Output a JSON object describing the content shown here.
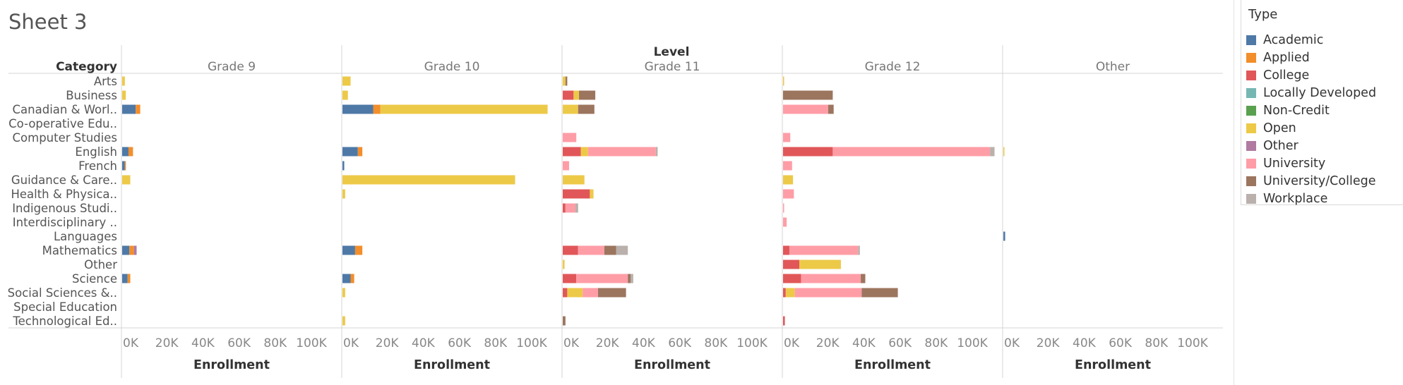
{
  "sheet_title": "Sheet 3",
  "legend": {
    "title": "Type",
    "items": [
      {
        "name": "Academic",
        "color": "#4e79a7"
      },
      {
        "name": "Applied",
        "color": "#f28e2b"
      },
      {
        "name": "College",
        "color": "#e15759"
      },
      {
        "name": "Locally Developed",
        "color": "#76b7b2"
      },
      {
        "name": "Non-Credit",
        "color": "#59a14f"
      },
      {
        "name": "Open",
        "color": "#edc948"
      },
      {
        "name": "Other",
        "color": "#b07aa1"
      },
      {
        "name": "University",
        "color": "#ff9da7"
      },
      {
        "name": "University/College",
        "color": "#9c755f"
      },
      {
        "name": "Workplace",
        "color": "#bab0ac"
      }
    ]
  },
  "chart_data": {
    "type": "bar",
    "orientation": "horizontal",
    "stacked": true,
    "column_header_title": "Level",
    "row_header_title": "Category",
    "xlabel": "Enrollment",
    "xlim": [
      0,
      115000
    ],
    "xticks": [
      "0K",
      "20K",
      "40K",
      "60K",
      "80K",
      "100K"
    ],
    "tick_values": [
      0,
      20000,
      40000,
      60000,
      80000,
      100000
    ],
    "levels": [
      "Grade 9",
      "Grade 10",
      "Grade 11",
      "Grade 12",
      "Other"
    ],
    "categories": [
      "Arts",
      "Business",
      "Canadian & Worl..",
      "Co-operative Edu..",
      "Computer Studies",
      "English",
      "French",
      "Guidance & Care..",
      "Health & Physica..",
      "Indigenous Studi..",
      "Interdisciplinary ..",
      "Languages",
      "Mathematics",
      "Other",
      "Science",
      "Social Sciences &..",
      "Special Education",
      "Technological Ed.."
    ],
    "data": {
      "Grade 9": {
        "Arts": {
          "Open": 1500
        },
        "Business": {
          "Open": 2000
        },
        "Canadian & Worl..": {
          "Applied": 2500,
          "Academic": 7500
        },
        "English": {
          "Applied": 2500,
          "Academic": 3500
        },
        "French": {
          "Applied": 500,
          "Academic": 1500
        },
        "Guidance & Care..": {
          "Open": 4500
        },
        "Mathematics": {
          "Other": 1500,
          "Applied": 2500,
          "Academic": 4000
        },
        "Science": {
          "Applied": 1500,
          "Academic": 3000
        }
      },
      "Grade 10": {
        "Arts": {
          "Open": 4500
        },
        "Business": {
          "Open": 3000
        },
        "Canadian & Worl..": {
          "Open": 92500,
          "Applied": 4000,
          "Academic": 17000
        },
        "English": {
          "Applied": 2500,
          "Academic": 8500
        },
        "French": {
          "Academic": 1000
        },
        "Guidance & Care..": {
          "Open": 95500
        },
        "Health & Physica..": {
          "Open": 1500
        },
        "Mathematics": {
          "Applied": 4000,
          "Academic": 7000
        },
        "Science": {
          "Applied": 2000,
          "Academic": 4500
        },
        "Social Sciences &..": {
          "Open": 1500
        },
        "Technological Ed..": {
          "Open": 1500
        }
      },
      "Grade 11": {
        "Arts": {
          "University/College": 1000,
          "Open": 1500
        },
        "Business": {
          "University/College": 9000,
          "Open": 3000,
          "College": 6000
        },
        "Canadian & Worl..": {
          "University/College": 9000,
          "Open": 8500
        },
        "Computer Studies": {
          "University": 7500
        },
        "English": {
          "Workplace": 1000,
          "University": 37500,
          "Open": 4000,
          "College": 10000
        },
        "French": {
          "University": 3500
        },
        "Guidance & Care..": {
          "Open": 12000
        },
        "Health & Physica..": {
          "Open": 2000,
          "College": 15000
        },
        "Indigenous Studi..": {
          "Workplace": 1500,
          "University": 5500,
          "College": 1500
        },
        "Mathematics": {
          "Workplace": 6500,
          "University/College": 6500,
          "University": 14500,
          "College": 8500
        },
        "Other": {
          "Open": 1000
        },
        "Science": {
          "Workplace": 1500,
          "University/College": 1500,
          "University": 28500,
          "College": 7500
        },
        "Social Sciences &..": {
          "University/College": 15500,
          "University": 8500,
          "Open": 8500,
          "College": 2500
        },
        "Technological Ed..": {
          "University/College": 1500
        }
      },
      "Grade 12": {
        "Arts": {
          "Open": 500
        },
        "Business": {
          "University/College": 27500
        },
        "Canadian & Worl..": {
          "University/College": 3000,
          "University": 25000
        },
        "Computer Studies": {
          "University": 4000
        },
        "English": {
          "Workplace": 2500,
          "University": 87000,
          "College": 27500
        },
        "French": {
          "University": 5000
        },
        "Guidance & Care..": {
          "Open": 5500
        },
        "Health & Physica..": {
          "University": 6000
        },
        "Indigenous Studi..": {
          "University": 500
        },
        "Interdisciplinary ..": {
          "University": 2000
        },
        "Mathematics": {
          "Workplace": 1000,
          "University": 38000,
          "College": 3500
        },
        "Other": {
          "Open": 23000,
          "College": 9000
        },
        "Science": {
          "University/College": 2500,
          "University": 33000,
          "College": 10000
        },
        "Social Sciences &..": {
          "University/College": 20000,
          "University": 37000,
          "Open": 5000,
          "College": 1500
        },
        "Technological Ed..": {
          "College": 1000
        }
      },
      "Other": {
        "English": {
          "Open": 500
        },
        "Languages": {
          "Academic": 1000
        }
      }
    }
  }
}
